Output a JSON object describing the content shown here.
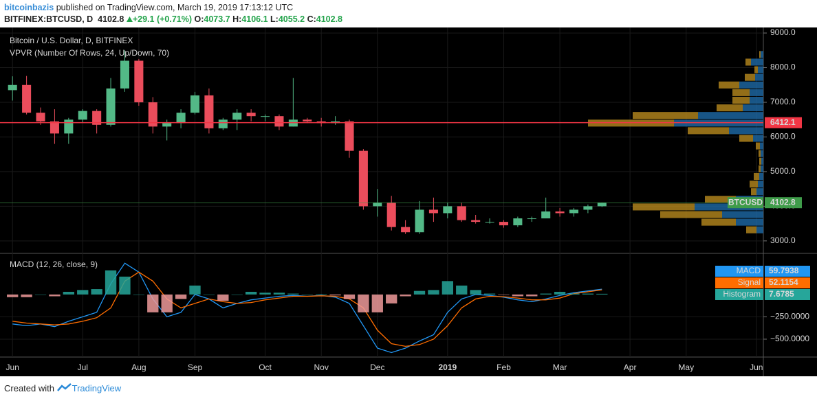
{
  "header": {
    "author": "bitcoinbazis",
    "published": " published on TradingView.com, March 19, 2019 17:13:12 UTC",
    "symbol": "BITFINEX:BTCUSD, D",
    "last": 4102.8,
    "change": "+29.1 (+0.71%)",
    "ohlc_labels": [
      "O:",
      "H:",
      "L:",
      "C:"
    ],
    "ohlc_values": [
      4073.7,
      4106.1,
      4055.2,
      4102.8
    ]
  },
  "chart_data": [
    {
      "type": "candlestick",
      "title": "Bitcoin / U.S. Dollar, D, BITFINEX",
      "subtitle": "VPVR (Number Of Rows, 24, Up/Down, 70)",
      "categories": [
        "Jun",
        null,
        null,
        null,
        null,
        "Jul",
        null,
        null,
        null,
        "Aug",
        null,
        null,
        null,
        "Sep",
        null,
        null,
        null,
        null,
        "Oct",
        null,
        null,
        null,
        "Nov",
        null,
        null,
        null,
        "Dec",
        null,
        null,
        null,
        null,
        "2019",
        null,
        null,
        null,
        "Feb",
        null,
        null,
        null,
        "Mar",
        null,
        null,
        null,
        null,
        "Apr",
        null,
        null,
        null,
        "May",
        null,
        null,
        null,
        null,
        "Jun"
      ],
      "open": [
        7350,
        7500,
        6700,
        6450,
        6100,
        6500,
        6750,
        6350,
        7400,
        8200,
        7000,
        6300,
        6400,
        6700,
        7200,
        6250,
        6500,
        6700,
        6600,
        6600,
        6300,
        6500,
        6450,
        6400,
        6450,
        5600,
        4000,
        4100,
        3400,
        3250,
        3900,
        3800,
        4000,
        3600,
        3550,
        3550,
        3450,
        3650,
        3650,
        3850,
        3800,
        3900,
        4000,
        null,
        null,
        null,
        null,
        null,
        null,
        null,
        null,
        null,
        null,
        null
      ],
      "high": [
        7750,
        7760,
        6850,
        6800,
        6550,
        6800,
        6800,
        7700,
        8500,
        8250,
        7150,
        6500,
        6800,
        7300,
        7400,
        6550,
        6800,
        6800,
        6650,
        6650,
        7700,
        6550,
        6550,
        6600,
        6500,
        5650,
        4500,
        4300,
        3600,
        4150,
        4250,
        4100,
        4100,
        3750,
        3650,
        3600,
        3700,
        3700,
        4250,
        3950,
        3950,
        4050,
        4110,
        null,
        null,
        null,
        null,
        null,
        null,
        null,
        null,
        null,
        null,
        null
      ],
      "low": [
        7050,
        6650,
        6350,
        5800,
        5800,
        6400,
        6100,
        6300,
        7300,
        6900,
        6100,
        5900,
        6250,
        6650,
        6100,
        6200,
        6200,
        6450,
        6450,
        6200,
        6300,
        6400,
        6300,
        6350,
        5400,
        3900,
        3700,
        3300,
        3200,
        3200,
        3550,
        3650,
        3550,
        3500,
        3500,
        3380,
        3400,
        3550,
        3650,
        3700,
        3700,
        3800,
        3980,
        null,
        null,
        null,
        null,
        null,
        null,
        null,
        null,
        null,
        null,
        null
      ],
      "close": [
        7500,
        6700,
        6450,
        6100,
        6500,
        6750,
        6350,
        7400,
        8200,
        7000,
        6300,
        6400,
        6700,
        7200,
        6250,
        6500,
        6700,
        6600,
        6600,
        6300,
        6500,
        6450,
        6400,
        6450,
        5600,
        4000,
        4100,
        3400,
        3250,
        3900,
        3800,
        4000,
        3600,
        3550,
        3550,
        3450,
        3650,
        3650,
        3850,
        3800,
        3900,
        4000,
        4102.8,
        null,
        null,
        null,
        null,
        null,
        null,
        null,
        null,
        null,
        null,
        null
      ],
      "up_color": "#53b987",
      "down_color": "#eb4d5c",
      "ylim": [
        2640,
        9160
      ],
      "yticks": [
        {
          "value": 3000,
          "label": "3000.0"
        },
        {
          "value": 4000,
          "label": "4000.0"
        },
        {
          "value": 5000,
          "label": "5000.0"
        },
        {
          "value": 6000,
          "label": "6000.0"
        },
        {
          "value": 7000,
          "label": "7000.0"
        },
        {
          "value": 8000,
          "label": "8000.0"
        },
        {
          "value": 9000,
          "label": "9000.0"
        }
      ],
      "grid": true,
      "vpvr": {
        "bins": [
          3200,
          3420,
          3640,
          3860,
          4080,
          4300,
          4520,
          4740,
          4960,
          5180,
          5400,
          5620,
          5840,
          6060,
          6280,
          6500,
          6720,
          6940,
          7160,
          7380,
          7600,
          7820,
          8040,
          8260,
          8480
        ],
        "up": [
          10,
          40,
          60,
          100,
          40,
          10,
          8,
          6,
          4,
          3,
          4,
          5,
          15,
          50,
          130,
          95,
          30,
          20,
          20,
          35,
          12,
          8,
          18,
          4
        ],
        "down": [
          15,
          50,
          90,
          90,
          45,
          8,
          12,
          8,
          3,
          3,
          3,
          6,
          20,
          60,
          125,
          95,
          38,
          25,
          25,
          30,
          15,
          5,
          8,
          2
        ],
        "up_color": "#1e6aa8",
        "down_color": "#b8891e"
      },
      "poc": {
        "value": 6412.1,
        "color": "#f23645"
      },
      "last_price": {
        "name": "BTCUSD",
        "value": 4102.8,
        "color": "#3f9c4a"
      }
    },
    {
      "type": "macd",
      "title": "MACD (12, 26, close, 9)",
      "series": [
        {
          "name": "MACD",
          "color": "#2196f3",
          "values": [
            -330,
            -350,
            -330,
            -360,
            -300,
            -250,
            -200,
            120,
            350,
            250,
            -50,
            -250,
            -200,
            0,
            -50,
            -150,
            -100,
            -60,
            -40,
            -20,
            -10,
            -20,
            -10,
            -30,
            -100,
            -350,
            -600,
            -650,
            -600,
            -520,
            -450,
            -200,
            -50,
            0,
            -10,
            -30,
            -60,
            -80,
            -50,
            -10,
            20,
            40,
            59.7938,
            null,
            null,
            null,
            null,
            null,
            null,
            null,
            null,
            null,
            null,
            null
          ]
        },
        {
          "name": "Signal",
          "color": "#ff6d00",
          "values": [
            -300,
            -320,
            -330,
            -340,
            -330,
            -300,
            -260,
            -150,
            150,
            250,
            150,
            -50,
            -150,
            -100,
            -50,
            -80,
            -100,
            -90,
            -60,
            -40,
            -20,
            -20,
            -15,
            -20,
            -50,
            -150,
            -400,
            -550,
            -580,
            -560,
            -500,
            -350,
            -150,
            -50,
            -20,
            -25,
            -40,
            -60,
            -60,
            -40,
            10,
            30,
            52.1154,
            null,
            null,
            null,
            null,
            null,
            null,
            null,
            null,
            null,
            null,
            null
          ]
        },
        {
          "name": "Histogram",
          "color": "#26a69a",
          "negative_color": "#ef9a9a",
          "style": "histogram",
          "values": [
            -30,
            -30,
            0,
            -20,
            30,
            50,
            60,
            270,
            200,
            0,
            -200,
            -200,
            -50,
            100,
            0,
            -70,
            0,
            30,
            20,
            20,
            10,
            0,
            5,
            -10,
            -50,
            -200,
            -200,
            -100,
            -20,
            40,
            50,
            150,
            100,
            50,
            10,
            -5,
            -20,
            -20,
            10,
            30,
            10,
            10,
            7.6785,
            null,
            null,
            null,
            null,
            null,
            null,
            null,
            null,
            null,
            null,
            null
          ]
        }
      ],
      "ylim": [
        -700,
        460
      ],
      "yticks": [
        {
          "value": -250,
          "label": "−250.0000"
        },
        {
          "value": -500,
          "label": "−500.0000"
        }
      ],
      "grid": true
    }
  ],
  "footer": {
    "text": "Created with",
    "brand": "TradingView"
  }
}
